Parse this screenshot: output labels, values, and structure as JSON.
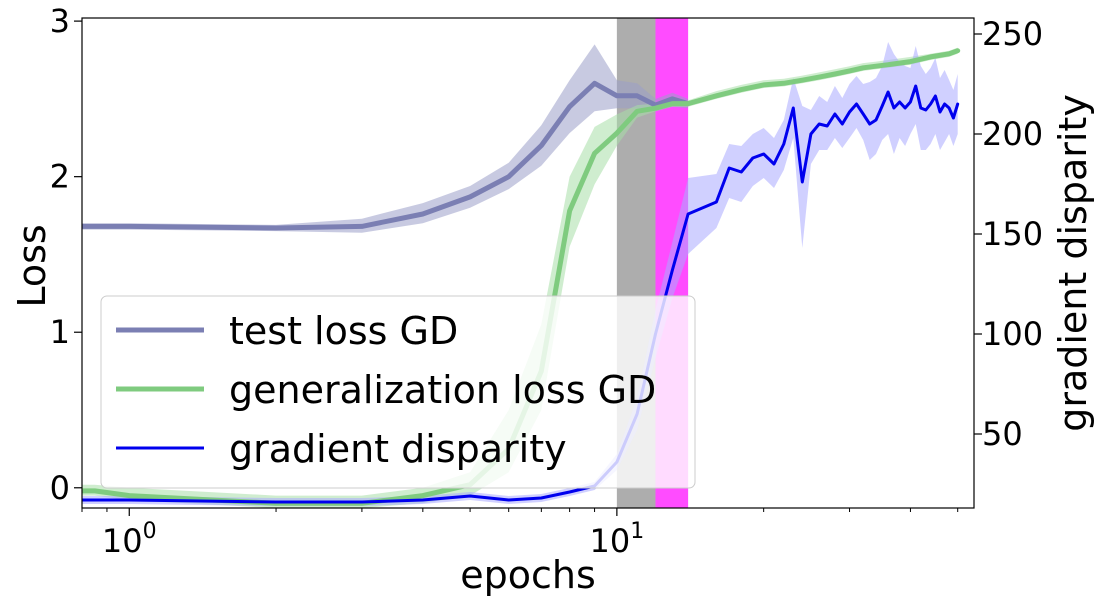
{
  "chart_data": {
    "type": "line",
    "xlabel": "epochs",
    "ylabel": "Loss",
    "y2label": "gradient disparity",
    "xscale": "log",
    "xlim": [
      0.8,
      54
    ],
    "ylim": [
      -0.13,
      3.02
    ],
    "y2lim": [
      13,
      258
    ],
    "x_ticks": [
      1,
      10
    ],
    "x_tick_labels": [
      "10^0",
      "10^1"
    ],
    "y_ticks": [
      0,
      1,
      2,
      3
    ],
    "y_tick_labels": [
      "0",
      "1",
      "2",
      "3"
    ],
    "y2_ticks": [
      50,
      100,
      150,
      200,
      250
    ],
    "y2_tick_labels": [
      "50",
      "100",
      "150",
      "200",
      "250"
    ],
    "grid": false,
    "legend_position": "lower-left",
    "shaded_regions": [
      {
        "x0": 10,
        "x1": 12,
        "color": "#a9a9a9",
        "opacity": 0.95
      },
      {
        "x0": 12,
        "x1": 14,
        "color": "#ff00ff",
        "opacity": 0.7
      }
    ],
    "series": [
      {
        "name": "test loss GD",
        "axis": "left",
        "color": "#7b7fb3",
        "band_color": "#9b9fc8",
        "width": 5,
        "x": [
          0.8,
          1,
          2,
          3,
          4,
          5,
          6,
          7,
          8,
          9,
          10,
          11,
          12,
          13,
          14
        ],
        "y": [
          1.68,
          1.68,
          1.67,
          1.68,
          1.76,
          1.87,
          2.0,
          2.2,
          2.45,
          2.6,
          2.52,
          2.52,
          2.46,
          2.5,
          2.47
        ],
        "lower": [
          1.66,
          1.66,
          1.65,
          1.64,
          1.7,
          1.8,
          1.92,
          2.07,
          2.28,
          2.42,
          2.44,
          2.44,
          2.42,
          2.45,
          2.44
        ],
        "upper": [
          1.7,
          1.7,
          1.69,
          1.73,
          1.83,
          1.94,
          2.09,
          2.33,
          2.62,
          2.85,
          2.62,
          2.6,
          2.5,
          2.54,
          2.5
        ]
      },
      {
        "name": "generalization loss GD",
        "axis": "left",
        "color": "#7fcb7f",
        "band_color": "#a8dfa8",
        "width": 5,
        "x": [
          0.8,
          0.85,
          1,
          2,
          3,
          4,
          5,
          6,
          7,
          8,
          9,
          10,
          11,
          12,
          13,
          14,
          16,
          18,
          20,
          22,
          24,
          26,
          28,
          30,
          32,
          34,
          36,
          40,
          44,
          48,
          50
        ],
        "y": [
          -0.02,
          -0.02,
          -0.05,
          -0.1,
          -0.1,
          -0.05,
          0.02,
          0.25,
          0.75,
          1.78,
          2.15,
          2.28,
          2.42,
          2.44,
          2.47,
          2.47,
          2.52,
          2.56,
          2.59,
          2.6,
          2.62,
          2.64,
          2.66,
          2.68,
          2.7,
          2.71,
          2.72,
          2.74,
          2.77,
          2.79,
          2.81
        ],
        "lower": [
          -0.05,
          -0.05,
          -0.08,
          -0.13,
          -0.13,
          -0.1,
          -0.05,
          0.1,
          0.5,
          1.55,
          1.95,
          2.2,
          2.38,
          2.42,
          2.45,
          2.45,
          2.5,
          2.54,
          2.57,
          2.58,
          2.6,
          2.62,
          2.64,
          2.66,
          2.68,
          2.69,
          2.7,
          2.72,
          2.75,
          2.77,
          2.79
        ],
        "upper": [
          0.02,
          0.02,
          0.0,
          -0.05,
          -0.05,
          0.0,
          0.1,
          0.5,
          1.05,
          2.0,
          2.32,
          2.4,
          2.46,
          2.47,
          2.49,
          2.49,
          2.55,
          2.59,
          2.62,
          2.63,
          2.65,
          2.67,
          2.69,
          2.71,
          2.73,
          2.74,
          2.75,
          2.77,
          2.79,
          2.81,
          2.83
        ]
      },
      {
        "name": "gradient disparity",
        "axis": "right",
        "color": "#0000ee",
        "band_color": "#aaaaff",
        "width": 3,
        "x": [
          0.8,
          1,
          2,
          3,
          4,
          5,
          6,
          7,
          8,
          9,
          10,
          11,
          12,
          13,
          14,
          16,
          17,
          18,
          19,
          20,
          21,
          22,
          23,
          24,
          25,
          26,
          27,
          28,
          29,
          30,
          31,
          32,
          33,
          34,
          35,
          36,
          37,
          38,
          39,
          40,
          41,
          42,
          43,
          44,
          45,
          46,
          47,
          48,
          49,
          50
        ],
        "y": [
          17,
          17,
          16,
          16,
          17,
          19,
          17,
          18,
          21,
          24,
          36,
          60,
          100,
          132,
          160,
          166,
          183,
          181,
          188,
          190,
          185,
          195,
          213,
          176,
          200,
          205,
          204,
          210,
          205,
          211,
          215,
          210,
          205,
          207,
          214,
          221,
          213,
          216,
          213,
          216,
          224,
          213,
          212,
          215,
          219,
          211,
          215,
          213,
          208,
          215
        ],
        "lower": [
          15,
          15,
          14,
          14,
          15,
          17,
          15,
          16,
          19,
          22,
          32,
          52,
          88,
          118,
          140,
          153,
          168,
          166,
          174,
          178,
          173,
          182,
          198,
          143,
          185,
          192,
          192,
          198,
          193,
          198,
          203,
          197,
          187,
          190,
          197,
          200,
          190,
          198,
          194,
          200,
          205,
          192,
          192,
          195,
          200,
          192,
          196,
          200,
          194,
          200
        ],
        "upper": [
          19,
          19,
          18,
          18,
          19,
          21,
          19,
          20,
          23,
          26,
          40,
          68,
          112,
          146,
          178,
          180,
          195,
          194,
          200,
          203,
          198,
          207,
          228,
          214,
          212,
          219,
          216,
          224,
          218,
          225,
          229,
          225,
          226,
          228,
          234,
          246,
          240,
          236,
          234,
          233,
          244,
          234,
          230,
          233,
          238,
          228,
          232,
          227,
          222,
          230
        ]
      }
    ]
  }
}
